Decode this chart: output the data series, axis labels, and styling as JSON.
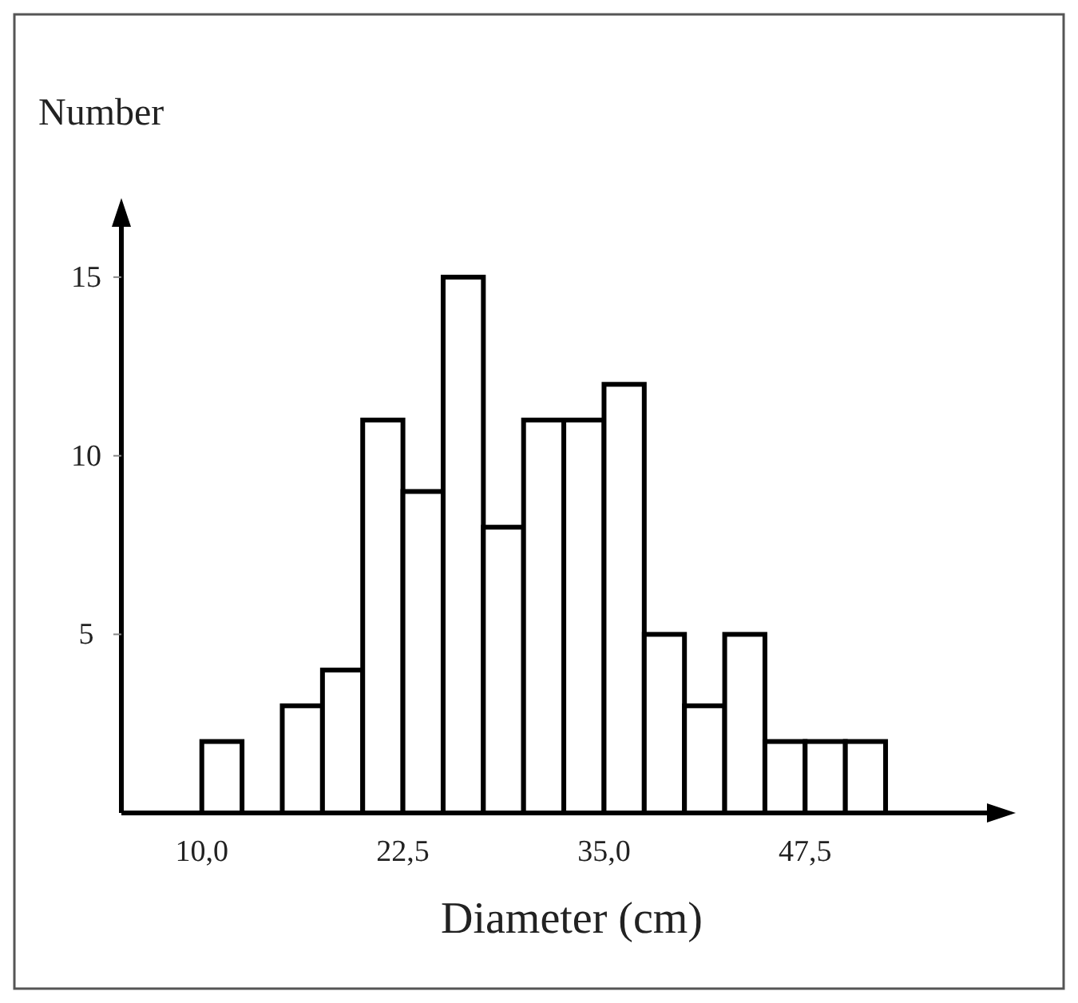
{
  "chart_data": {
    "type": "histogram",
    "ylabel": "Number",
    "xlabel": "Diameter (cm)",
    "bins": [
      10,
      12.5,
      15,
      17.5,
      20,
      22.5,
      25,
      27.5,
      30,
      32.5,
      35,
      37.5,
      40,
      42.5,
      45,
      47.5,
      50,
      52.5
    ],
    "values": [
      2,
      0,
      3,
      4,
      11,
      9,
      15,
      8,
      11,
      11,
      12,
      5,
      3,
      5,
      2,
      2,
      2
    ],
    "color": "#ffffff",
    "xlim": [
      5,
      59
    ],
    "xticks": [
      {
        "value": 10,
        "label": "10,0"
      },
      {
        "value": 22.5,
        "label": "22,5"
      },
      {
        "value": 35,
        "label": "35,0"
      },
      {
        "value": 47.5,
        "label": "47,5"
      }
    ],
    "ylim": [
      0,
      16.5
    ],
    "yticks": [
      {
        "value": 5,
        "label": "5"
      },
      {
        "value": 10,
        "label": "10"
      },
      {
        "value": 15,
        "label": "15"
      }
    ],
    "grid": false
  }
}
